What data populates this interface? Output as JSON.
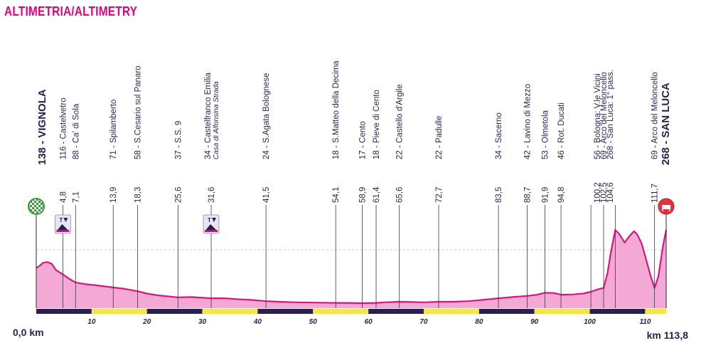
{
  "title": "ALTIMETRIA/ALTIMETRY",
  "colors": {
    "title": "#e6007e",
    "profile_fill": "#f4a9d5",
    "profile_line": "#d6187e",
    "axis_dark": "#2b1f52",
    "axis_yellow": "#f7e34a",
    "tick_text": "#2b1f52",
    "start_icon": "#3c9a3c",
    "finish_icon": "#e2323b"
  },
  "chart_data": {
    "type": "area",
    "xlabel_start": "0,0 km",
    "xlabel_end": "km 113,8",
    "xlim": [
      0,
      113.8
    ],
    "ylim": [
      0,
      300
    ],
    "x_ticks": [
      10,
      20,
      30,
      40,
      50,
      60,
      70,
      80,
      90,
      100,
      110
    ],
    "axis_segments": [
      {
        "from": 0,
        "to": 10,
        "color": "dark"
      },
      {
        "from": 10,
        "to": 20,
        "color": "yellow"
      },
      {
        "from": 20,
        "to": 30,
        "color": "dark"
      },
      {
        "from": 30,
        "to": 40,
        "color": "yellow"
      },
      {
        "from": 40,
        "to": 50,
        "color": "dark"
      },
      {
        "from": 50,
        "to": 60,
        "color": "yellow"
      },
      {
        "from": 60,
        "to": 70,
        "color": "dark"
      },
      {
        "from": 70,
        "to": 80,
        "color": "yellow"
      },
      {
        "from": 80,
        "to": 90,
        "color": "dark"
      },
      {
        "from": 90,
        "to": 100,
        "color": "yellow"
      },
      {
        "from": 100,
        "to": 110,
        "color": "dark"
      },
      {
        "from": 110,
        "to": 113.8,
        "color": "yellow"
      }
    ],
    "profile": [
      [
        0,
        138
      ],
      [
        0.6,
        145
      ],
      [
        1.2,
        155
      ],
      [
        2.0,
        158
      ],
      [
        2.8,
        152
      ],
      [
        3.6,
        130
      ],
      [
        4.8,
        116
      ],
      [
        6.0,
        100
      ],
      [
        7.1,
        88
      ],
      [
        9,
        82
      ],
      [
        11,
        78
      ],
      [
        13.9,
        71
      ],
      [
        16,
        66
      ],
      [
        18.3,
        58
      ],
      [
        20,
        50
      ],
      [
        22,
        44
      ],
      [
        25.6,
        37
      ],
      [
        28,
        38
      ],
      [
        31.6,
        34
      ],
      [
        34,
        34
      ],
      [
        37,
        30
      ],
      [
        39,
        28
      ],
      [
        41.5,
        24
      ],
      [
        44,
        22
      ],
      [
        47,
        20
      ],
      [
        50,
        19
      ],
      [
        54.1,
        18
      ],
      [
        56,
        18
      ],
      [
        58.9,
        17
      ],
      [
        61.4,
        18
      ],
      [
        63,
        20
      ],
      [
        65.6,
        22
      ],
      [
        68,
        21
      ],
      [
        70,
        20
      ],
      [
        72.7,
        22
      ],
      [
        75,
        22
      ],
      [
        78,
        24
      ],
      [
        80,
        27
      ],
      [
        83.5,
        34
      ],
      [
        86,
        38
      ],
      [
        88.7,
        42
      ],
      [
        90.5,
        46
      ],
      [
        91.9,
        53
      ],
      [
        93.5,
        52
      ],
      [
        94.8,
        46
      ],
      [
        97,
        47
      ],
      [
        98.8,
        50
      ],
      [
        100.2,
        56
      ],
      [
        101.5,
        65
      ],
      [
        102.5,
        69
      ],
      [
        103.2,
        120
      ],
      [
        103.8,
        190
      ],
      [
        104.6,
        268
      ],
      [
        105.3,
        255
      ],
      [
        106.3,
        225
      ],
      [
        107.2,
        248
      ],
      [
        108,
        264
      ],
      [
        108.6,
        252
      ],
      [
        109.4,
        220
      ],
      [
        110.2,
        165
      ],
      [
        111,
        110
      ],
      [
        111.7,
        69
      ],
      [
        112.4,
        110
      ],
      [
        113.2,
        210
      ],
      [
        113.8,
        268
      ]
    ],
    "waypoints": [
      {
        "km": "4,8",
        "km_value": 4.8,
        "alt": "116",
        "name": "Castelvetro",
        "intermediate_sprint": true
      },
      {
        "km": "7,1",
        "km_value": 7.1,
        "alt": "88",
        "name": "Ca' di Sola"
      },
      {
        "km": "13,9",
        "km_value": 13.9,
        "alt": "71",
        "name": "Spilamberto"
      },
      {
        "km": "18,3",
        "km_value": 18.3,
        "alt": "58",
        "name": "S.Cesario sul Panaro"
      },
      {
        "km": "25,6",
        "km_value": 25.6,
        "alt": "37",
        "name": "S.S. 9"
      },
      {
        "km": "31,6",
        "km_value": 31.6,
        "alt": "34",
        "name": "Castelfranco Emilia",
        "subname": "Casa di Alfonsina Strada",
        "intermediate_sprint": true
      },
      {
        "km": "41,5",
        "km_value": 41.5,
        "alt": "24",
        "name": "S.Agata Bolognese"
      },
      {
        "km": "54,1",
        "km_value": 54.1,
        "alt": "18",
        "name": "S.Matteo della Decima"
      },
      {
        "km": "58,9",
        "km_value": 58.9,
        "alt": "17",
        "name": "Cento"
      },
      {
        "km": "61,4",
        "km_value": 61.4,
        "alt": "18",
        "name": "Pieve di Cento"
      },
      {
        "km": "65,6",
        "km_value": 65.6,
        "alt": "22",
        "name": "Castello d'Argile"
      },
      {
        "km": "72,7",
        "km_value": 72.7,
        "alt": "22",
        "name": "Padulle"
      },
      {
        "km": "83,5",
        "km_value": 83.5,
        "alt": "34",
        "name": "Sacerno"
      },
      {
        "km": "88,7",
        "km_value": 88.7,
        "alt": "42",
        "name": "Lavino di Mezzo"
      },
      {
        "km": "91,9",
        "km_value": 91.9,
        "alt": "53",
        "name": "Olmetola"
      },
      {
        "km": "94,8",
        "km_value": 94.8,
        "alt": "46",
        "name": "Rot. Ducati"
      },
      {
        "km": "100,2",
        "km_value": 100.2,
        "alt": "56",
        "name": "Bologna: V.le Vicini",
        "group": "stack"
      },
      {
        "km": "102,5",
        "km_value": 102.5,
        "alt": "69",
        "name": "Arco del Meloncello",
        "group": "stack"
      },
      {
        "km": "104,6",
        "km_value": 104.6,
        "alt": "268",
        "name": "San Luca: 1° pass.",
        "group": "stack"
      },
      {
        "km": "111,7",
        "km_value": 111.7,
        "alt": "69",
        "name": "Arco del Meloncello"
      }
    ],
    "start": {
      "km_value": 0,
      "label": "138 - VIGNOLA",
      "icon": "checkered-flag-icon"
    },
    "finish": {
      "km_value": 113.8,
      "label": "268 - SAN LUCA",
      "icon": "finish-line-icon"
    }
  }
}
